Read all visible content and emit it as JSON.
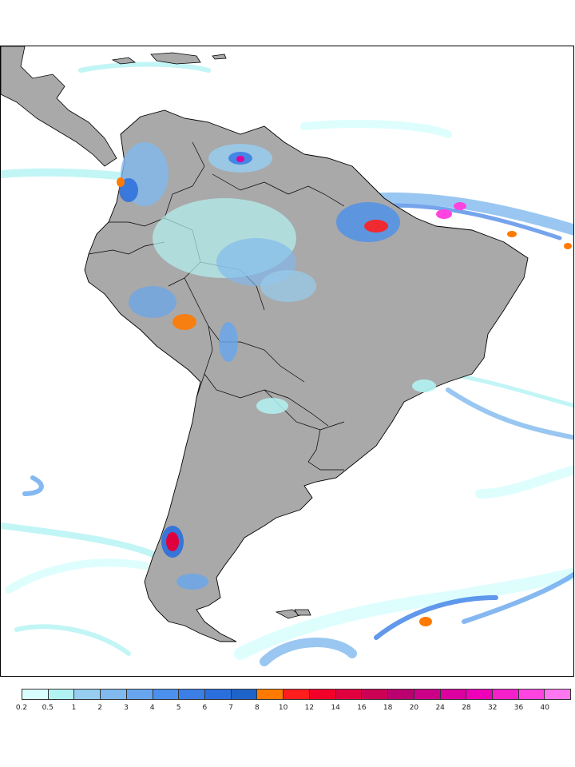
{
  "map": {
    "region": "South America",
    "land_color": "#a9a9a9",
    "ocean_color": "#ffffff",
    "border_color": "#000000"
  },
  "legend": {
    "bins": [
      {
        "color": "#dafefe"
      },
      {
        "color": "#b3f2f2"
      },
      {
        "color": "#97cdee"
      },
      {
        "color": "#80b9ee"
      },
      {
        "color": "#67a6ee"
      },
      {
        "color": "#4b90ec"
      },
      {
        "color": "#3b7ee6"
      },
      {
        "color": "#2a6fdd"
      },
      {
        "color": "#1e63c9"
      },
      {
        "color": "#ff7a00"
      },
      {
        "color": "#ff1e1e"
      },
      {
        "color": "#f3002a"
      },
      {
        "color": "#e0003e"
      },
      {
        "color": "#cc0055"
      },
      {
        "color": "#bb0070"
      },
      {
        "color": "#cc0088"
      },
      {
        "color": "#dd00a0"
      },
      {
        "color": "#ee00b8"
      },
      {
        "color": "#f520cc"
      },
      {
        "color": "#ff44e0"
      },
      {
        "color": "#ff77f0"
      }
    ],
    "tick_labels": [
      "0.2",
      "0.5",
      "1",
      "2",
      "3",
      "4",
      "5",
      "6",
      "7",
      "8",
      "10",
      "12",
      "14",
      "16",
      "18",
      "20",
      "24",
      "28",
      "32",
      "36",
      "40"
    ]
  }
}
